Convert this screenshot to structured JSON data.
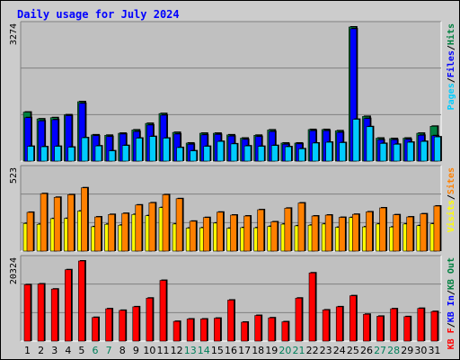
{
  "title": "Daily usage for July 2024",
  "chart_data": [
    {
      "type": "bar",
      "panel": "pages-files-hits",
      "categories": [
        "1",
        "2",
        "3",
        "4",
        "5",
        "6",
        "7",
        "8",
        "9",
        "10",
        "11",
        "12",
        "13",
        "14",
        "15",
        "16",
        "17",
        "18",
        "19",
        "20",
        "21",
        "22",
        "23",
        "24",
        "25",
        "26",
        "27",
        "28",
        "29",
        "30",
        "31"
      ],
      "ymax": 3274,
      "series": [
        {
          "name": "Hits",
          "color": "#008040",
          "values": [
            1195,
            1030,
            1060,
            1130,
            1450,
            640,
            630,
            680,
            760,
            920,
            1160,
            700,
            440,
            680,
            680,
            640,
            560,
            630,
            760,
            440,
            440,
            770,
            770,
            740,
            3274,
            1090,
            560,
            550,
            560,
            680,
            850
          ]
        },
        {
          "name": "Files",
          "color": "#0000ff",
          "values": [
            1060,
            980,
            1010,
            1110,
            1410,
            620,
            600,
            660,
            720,
            880,
            1120,
            660,
            410,
            640,
            650,
            610,
            530,
            600,
            720,
            410,
            420,
            740,
            740,
            700,
            3230,
            1040,
            520,
            520,
            530,
            630,
            620
          ]
        },
        {
          "name": "Pages",
          "color": "#00ccff",
          "values": [
            360,
            350,
            360,
            340,
            570,
            370,
            250,
            380,
            560,
            600,
            560,
            330,
            250,
            360,
            480,
            420,
            370,
            360,
            380,
            350,
            300,
            440,
            460,
            450,
            1020,
            840,
            430,
            410,
            460,
            480,
            590
          ]
        }
      ]
    },
    {
      "type": "bar",
      "panel": "visits-sites",
      "ymax": 523,
      "series": [
        {
          "name": "Visits",
          "color": "#ffff00",
          "values": [
            180,
            175,
            212,
            213,
            261,
            159,
            175,
            169,
            239,
            231,
            284,
            177,
            150,
            152,
            183,
            149,
            153,
            152,
            161,
            176,
            165,
            169,
            177,
            155,
            219,
            158,
            177,
            157,
            177,
            166,
            178
          ]
        },
        {
          "name": "Sites",
          "color": "#ff8000",
          "values": [
            253,
            375,
            351,
            368,
            413,
            223,
            239,
            246,
            301,
            315,
            368,
            342,
            195,
            219,
            254,
            235,
            229,
            270,
            191,
            280,
            314,
            229,
            235,
            220,
            240,
            256,
            282,
            237,
            223,
            243,
            294
          ]
        }
      ]
    },
    {
      "type": "bar",
      "panel": "kb-f",
      "ymax": 20324,
      "series": [
        {
          "name": "KB F",
          "color": "#ff0000",
          "values": [
            14300,
            14500,
            13200,
            18100,
            20324,
            6000,
            8200,
            7800,
            8700,
            10900,
            15400,
            5000,
            5600,
            5600,
            5800,
            10400,
            4800,
            6500,
            5900,
            4900,
            10900,
            17300,
            7900,
            8700,
            11500,
            6800,
            6300,
            8200,
            6200,
            8300,
            7500
          ]
        }
      ]
    }
  ],
  "y_axis_labels": {
    "top": "3274",
    "middle": "523",
    "bottom": "20324"
  },
  "legend": {
    "top": [
      {
        "text": "Pages",
        "color": "#00ccff"
      },
      {
        "text": "/",
        "color": "#000000"
      },
      {
        "text": "Files",
        "color": "#0000ff"
      },
      {
        "text": "/",
        "color": "#000000"
      },
      {
        "text": "Hits",
        "color": "#008040"
      }
    ],
    "middle": [
      {
        "text": "Visits",
        "color": "#ffff00"
      },
      {
        "text": "/",
        "color": "#000000"
      },
      {
        "text": "Sites",
        "color": "#ff8000"
      }
    ],
    "bottom": [
      {
        "text": "KB F",
        "color": "#ff0000"
      },
      {
        "text": "/",
        "color": "#000000"
      },
      {
        "text": "KB In",
        "color": "#0000ff"
      },
      {
        "text": "/",
        "color": "#000000"
      },
      {
        "text": "KB Out",
        "color": "#008040"
      }
    ]
  },
  "weekend_days": [
    6,
    7,
    13,
    14,
    20,
    21,
    27,
    28
  ],
  "colors": {
    "plot_bg": "#c0c0c0",
    "frame_bg": "#cccccc",
    "weekday_label": "#000000",
    "weekend_label": "#00805c",
    "gridline": "#808080"
  }
}
